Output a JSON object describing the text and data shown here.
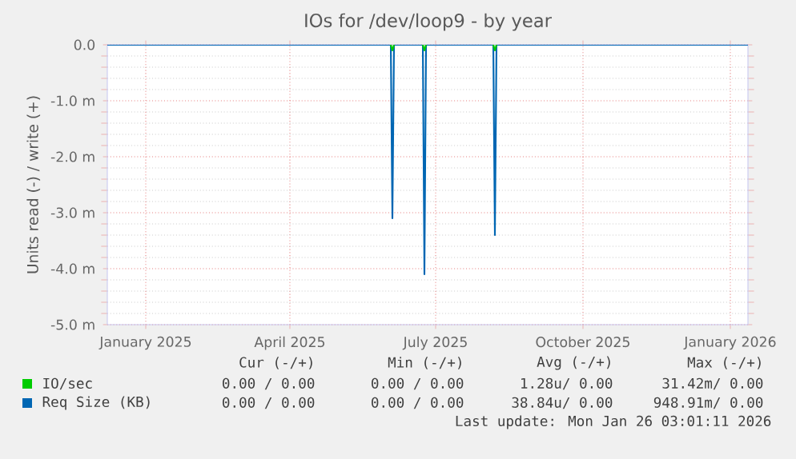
{
  "chart_data": {
    "type": "line",
    "title": "IOs for /dev/loop9 - by year",
    "ylabel": "Units read (-) / write (+)",
    "xlim": [
      "2024-12-22",
      "2026-01-26"
    ],
    "xticks": [
      {
        "value": "2025-01-15",
        "label": "January 2025"
      },
      {
        "value": "2025-04-15",
        "label": "April 2025"
      },
      {
        "value": "2025-07-15",
        "label": "July 2025"
      },
      {
        "value": "2025-10-15",
        "label": "October 2025"
      },
      {
        "value": "2026-01-15",
        "label": "January 2026"
      }
    ],
    "ylim": [
      -5,
      0
    ],
    "yticks": [
      {
        "value": -5,
        "label": "-5.0 m"
      },
      {
        "value": -4,
        "label": "-4.0 m"
      },
      {
        "value": -3,
        "label": "-3.0 m"
      },
      {
        "value": -2,
        "label": "-2.0 m"
      },
      {
        "value": -1,
        "label": "-1.0 m"
      },
      {
        "value": 0,
        "label": "0.0"
      }
    ],
    "grid": true,
    "legend": "bottom",
    "series": [
      {
        "name": "IO/sec",
        "color": "#00cc00",
        "x": [
          "2025-06-17",
          "2025-06-18",
          "2025-06-19",
          "2025-06-28",
          "2025-07-07",
          "2025-07-08",
          "2025-07-09",
          "2025-07-30",
          "2025-08-20",
          "2025-08-21",
          "2025-08-22"
        ],
        "values": [
          0,
          -0.1,
          0,
          null,
          0,
          -0.1,
          0,
          null,
          0,
          -0.1,
          0
        ]
      },
      {
        "name": "Req Size (KB)",
        "color": "#0066b3",
        "x": [
          "2024-12-22",
          "2025-06-17",
          "2025-06-18",
          "2025-06-19",
          "2025-07-07",
          "2025-07-08",
          "2025-07-09",
          "2025-08-20",
          "2025-08-21",
          "2025-08-22",
          "2026-01-26"
        ],
        "values": [
          0,
          0,
          -3.1,
          0,
          0,
          -4.1,
          0,
          0,
          -3.4,
          0,
          0
        ]
      }
    ],
    "annotations": [
      "Cur (-/+)",
      "Min (-/+)",
      "Avg (-/+)",
      "Max (-/+)",
      "0.00 / 0.00",
      "0.00 / 0.00",
      "1.28u/ 0.00",
      "31.42m/ 0.00",
      "0.00 / 0.00",
      "0.00 / 0.00",
      "38.84u/ 0.00",
      "948.91m/ 0.00",
      "Last update: Mon Jan 26 03:01:11 2026"
    ]
  }
}
